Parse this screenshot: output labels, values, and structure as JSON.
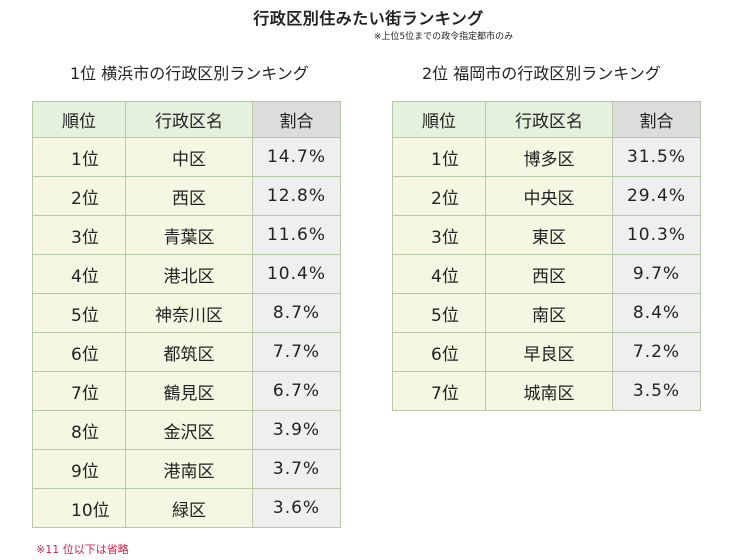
{
  "title": "行政区別住みたい街ランキング",
  "subtitle": "※上位5位までの政令指定都市のみ",
  "yokohama": {
    "heading": "1位 横浜市の行政区別ランキング",
    "headers": [
      "順位",
      "行政区名",
      "割合"
    ],
    "rows": [
      {
        "rank": "1位",
        "ward": "中区",
        "share": "14.7%"
      },
      {
        "rank": "2位",
        "ward": "西区",
        "share": "12.8%"
      },
      {
        "rank": "3位",
        "ward": "青葉区",
        "share": "11.6%"
      },
      {
        "rank": "4位",
        "ward": "港北区",
        "share": "10.4%"
      },
      {
        "rank": "5位",
        "ward": "神奈川区",
        "share": "8.7%"
      },
      {
        "rank": "6位",
        "ward": "都筑区",
        "share": "7.7%"
      },
      {
        "rank": "7位",
        "ward": "鶴見区",
        "share": "6.7%"
      },
      {
        "rank": "8位",
        "ward": "金沢区",
        "share": "3.9%"
      },
      {
        "rank": "9位",
        "ward": "港南区",
        "share": "3.7%"
      },
      {
        "rank": "10位",
        "ward": "緑区",
        "share": "3.6%"
      }
    ]
  },
  "fukuoka": {
    "heading": "2位 福岡市の行政区別ランキング",
    "headers": [
      "順位",
      "行政区名",
      "割合"
    ],
    "rows": [
      {
        "rank": "1位",
        "ward": "博多区",
        "share": "31.5%"
      },
      {
        "rank": "2位",
        "ward": "中央区",
        "share": "29.4%"
      },
      {
        "rank": "3位",
        "ward": "東区",
        "share": "10.3%"
      },
      {
        "rank": "4位",
        "ward": "西区",
        "share": "9.7%"
      },
      {
        "rank": "5位",
        "ward": "南区",
        "share": "8.4%"
      },
      {
        "rank": "6位",
        "ward": "早良区",
        "share": "7.2%"
      },
      {
        "rank": "7位",
        "ward": "城南区",
        "share": "3.5%"
      }
    ]
  },
  "note": "※11 位以下は省略"
}
